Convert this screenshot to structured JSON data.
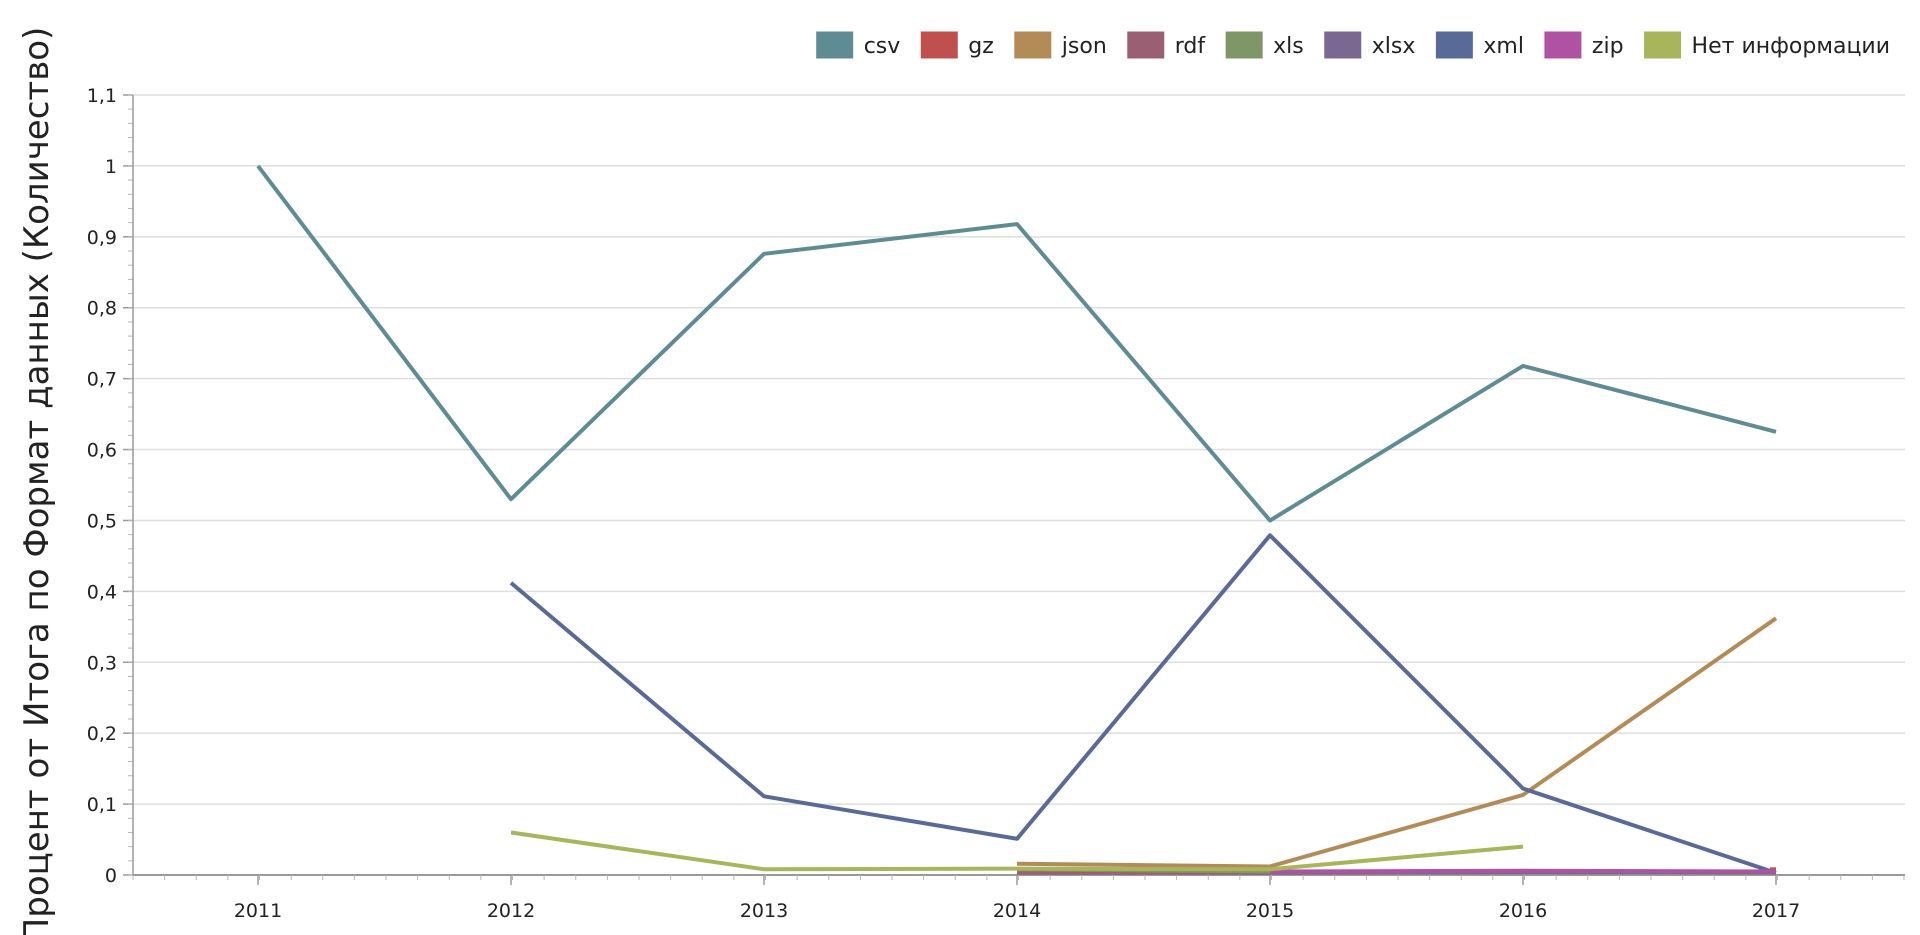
{
  "chart_data": {
    "type": "line",
    "ylabel": "Процент от Итога по Формат данных (Количество)",
    "xlabel": "",
    "x": [
      "2011",
      "2012",
      "2013",
      "2014",
      "2015",
      "2016",
      "2017"
    ],
    "ylim": [
      0,
      1.1
    ],
    "y_ticks": [
      "0",
      "0,1",
      "0,2",
      "0,3",
      "0,4",
      "0,5",
      "0,6",
      "0,7",
      "0,8",
      "0,9",
      "1",
      "1,1"
    ],
    "grid": true,
    "legend_position": "top-right",
    "series": [
      {
        "name": "csv",
        "color": "#5f8b94",
        "values": [
          1.0,
          0.53,
          0.876,
          0.918,
          0.5,
          0.718,
          0.625
        ]
      },
      {
        "name": "gz",
        "color": "#c0504d",
        "values": [
          null,
          null,
          null,
          null,
          null,
          null,
          0.008
        ]
      },
      {
        "name": "json",
        "color": "#b38b56",
        "values": [
          null,
          null,
          null,
          0.016,
          0.012,
          0.113,
          0.362
        ]
      },
      {
        "name": "rdf",
        "color": "#9b5f73",
        "values": [
          null,
          null,
          null,
          0.003,
          0.003,
          0.004,
          0.004
        ]
      },
      {
        "name": "xls",
        "color": "#7f9766",
        "values": [
          null,
          null,
          null,
          0.008,
          0.005,
          0.004,
          0.003
        ]
      },
      {
        "name": "xlsx",
        "color": "#7b6890",
        "values": [
          null,
          null,
          null,
          null,
          0.004,
          0.004,
          0.004
        ]
      },
      {
        "name": "xml",
        "color": "#5a6a98",
        "values": [
          null,
          0.412,
          0.111,
          0.051,
          0.479,
          0.122,
          0.003
        ]
      },
      {
        "name": "zip",
        "color": "#b052a3",
        "values": [
          null,
          null,
          null,
          null,
          0.005,
          0.006,
          0.005
        ]
      },
      {
        "name": "Нет информации",
        "color": "#a9b55a",
        "values": [
          null,
          0.06,
          0.008,
          0.009,
          0.008,
          0.04,
          null
        ]
      }
    ]
  }
}
